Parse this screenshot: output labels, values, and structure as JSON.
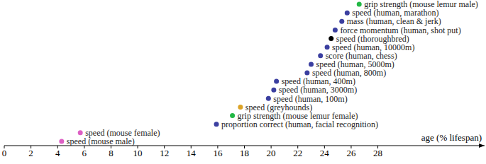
{
  "chart_data": {
    "type": "scatter",
    "xlabel": "age (% lifespan)",
    "xlim": [
      0,
      36
    ],
    "xticks": [
      0,
      2,
      4,
      6,
      8,
      10,
      12,
      14,
      16,
      18,
      20,
      22,
      24,
      26,
      28
    ],
    "ylim": [
      0.5,
      17.5
    ],
    "tick_labels": "x",
    "grid": false,
    "marker": "circle",
    "x": [
      4.3,
      5.7,
      15.9,
      17.1,
      17.7,
      19.8,
      20.2,
      20.4,
      22.7,
      23.0,
      23.7,
      24.2,
      24.5,
      24.8,
      25.3,
      25.7,
      26.6
    ],
    "values": [
      1,
      2,
      3,
      4,
      5,
      6,
      7,
      8,
      9,
      10,
      11,
      12,
      13,
      14,
      15,
      16,
      17
    ],
    "labels": [
      "speed (mouse male)",
      "speed (mouse female)",
      "proportion correct (human, facial recognition)",
      "grip strength (mouse lemur female)",
      "speed (greyhounds)",
      "speed (human, 100m)",
      "speed (human, 3000m)",
      "speed (human, 400m)",
      "speed (human, 800m)",
      "speed (human, 5000m)",
      "score (human, chess)",
      "speed (human, 10000m)",
      "speed (thoroughbred)",
      "force momentum (human, shot put)",
      "mass (human, clean & jerk)",
      "speed (human, marathon)",
      "grip strength (mouse lemur male)"
    ],
    "colors": [
      "#dd5fc4",
      "#dd5fc4",
      "#3b3fa0",
      "#22b845",
      "#dca326",
      "#3b3fa0",
      "#3b3fa0",
      "#3b3fa0",
      "#3b3fa0",
      "#3b3fa0",
      "#3b3fa0",
      "#3b3fa0",
      "#000000",
      "#3b3fa0",
      "#3b3fa0",
      "#3b3fa0",
      "#22b845"
    ]
  }
}
